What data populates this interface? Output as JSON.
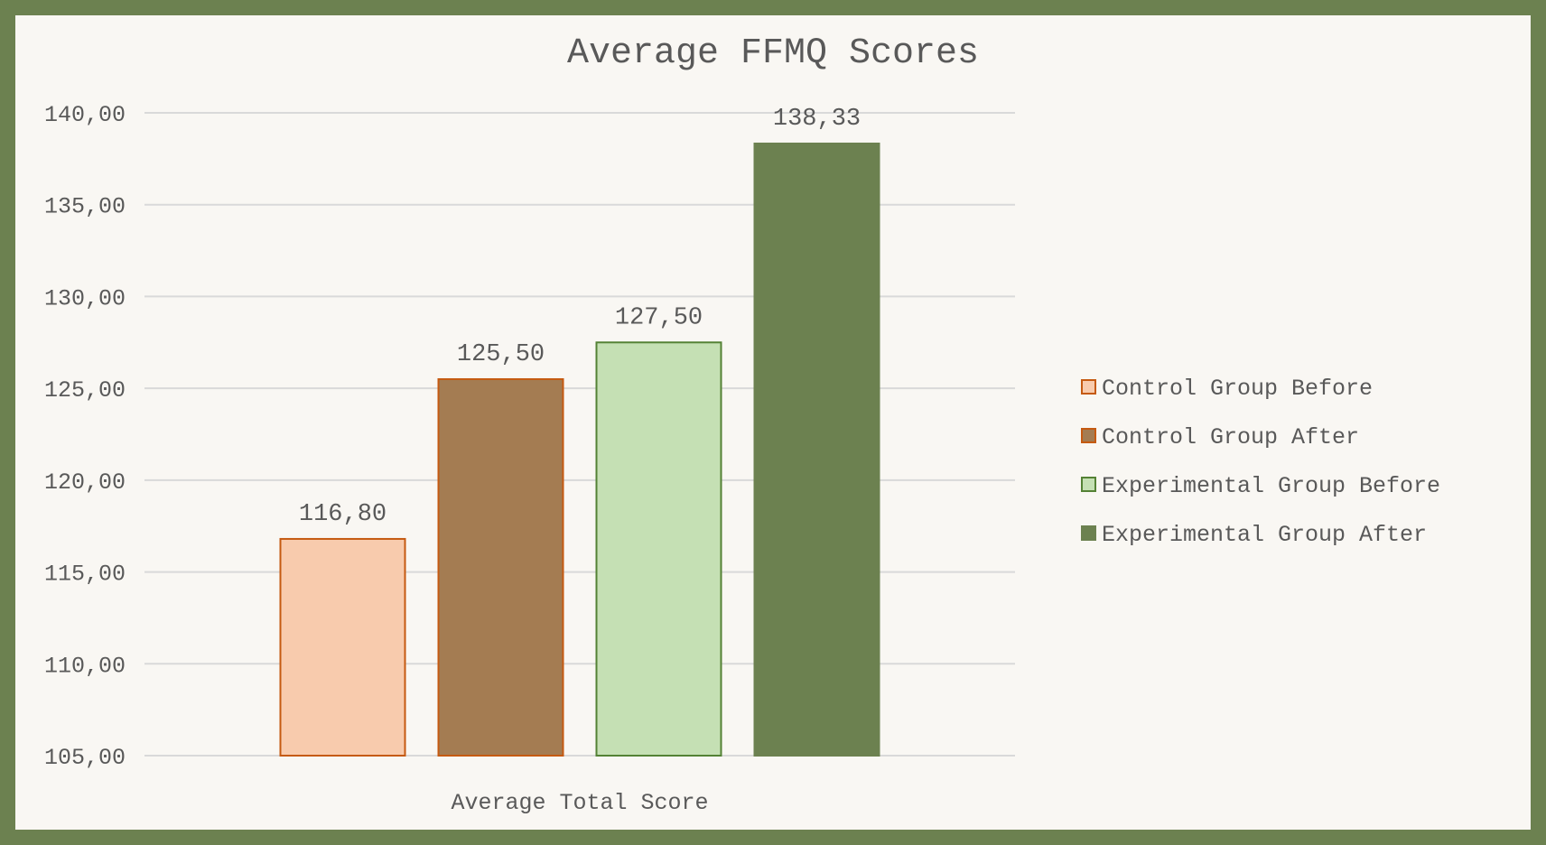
{
  "chart_data": {
    "type": "bar",
    "title": "Average FFMQ Scores",
    "categories": [
      "Average Total Score"
    ],
    "series": [
      {
        "name": "Control Group Before",
        "values": [
          116.8
        ],
        "label": "116,80",
        "fill": "#f8cbad",
        "stroke": "#c55a11"
      },
      {
        "name": "Control Group After",
        "values": [
          125.5
        ],
        "label": "125,50",
        "fill": "#a47c52",
        "stroke": "#c55a11"
      },
      {
        "name": "Experimental Group Before",
        "values": [
          127.5
        ],
        "label": "127,50",
        "fill": "#c5e0b4",
        "stroke": "#548235"
      },
      {
        "name": "Experimental Group After",
        "values": [
          138.33
        ],
        "label": "138,33",
        "fill": "#6c8150",
        "stroke": "#6c8150"
      }
    ],
    "ylim": [
      105,
      140
    ],
    "yticks": [
      105,
      110,
      115,
      120,
      125,
      130,
      135,
      140
    ],
    "ytick_labels": [
      "105,00",
      "110,00",
      "115,00",
      "120,00",
      "125,00",
      "130,00",
      "135,00",
      "140,00"
    ],
    "xlabel": "",
    "ylabel": "",
    "grid": true,
    "legend": "right"
  },
  "colors": {
    "border": "#6c8150",
    "background": "#f9f7f3",
    "gridline": "#d9d9d9",
    "text": "#595959"
  }
}
